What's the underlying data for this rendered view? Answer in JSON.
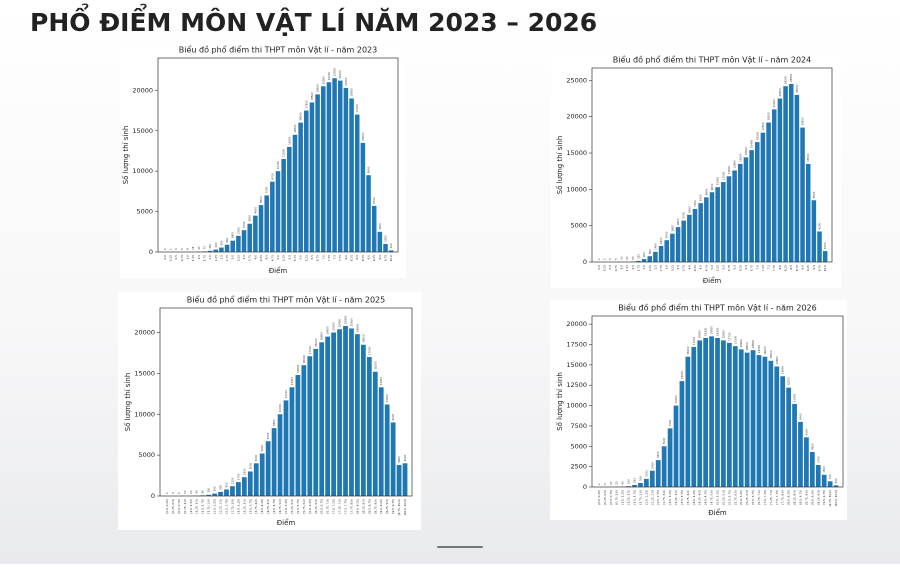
{
  "title": "PHỔ ĐIỂM MÔN VẬT LÍ NĂM 2023 – 2026",
  "chart_data": [
    {
      "type": "bar",
      "title": "Biểu đồ phổ điểm thi THPT môn Vật lí - năm 2023",
      "x_label": "Điểm",
      "y_label": "Số lượng thí sinh",
      "color": "#1f77b4",
      "categories": [
        "0.0",
        "0.25",
        "0.5",
        "0.75",
        "1.0",
        "1.25",
        "1.5",
        "1.75",
        "2.0",
        "2.25",
        "2.5",
        "2.75",
        "3.0",
        "3.25",
        "3.5",
        "3.75",
        "4.0",
        "4.25",
        "4.5",
        "4.75",
        "5.0",
        "5.25",
        "5.5",
        "5.75",
        "6.0",
        "6.25",
        "6.5",
        "6.75",
        "7.0",
        "7.25",
        "7.5",
        "7.75",
        "8.0",
        "8.25",
        "8.5",
        "8.75",
        "9.0",
        "9.25",
        "9.5",
        "9.75",
        "10.0"
      ],
      "values": [
        2,
        1,
        3,
        5,
        8,
        15,
        30,
        70,
        150,
        300,
        550,
        900,
        1400,
        2000,
        2700,
        3500,
        4500,
        5800,
        7000,
        8700,
        10000,
        11500,
        13000,
        14500,
        16000,
        17500,
        18500,
        19500,
        20500,
        21000,
        21500,
        21200,
        20300,
        19000,
        17000,
        13500,
        9500,
        5700,
        2500,
        1000,
        200
      ],
      "ylim": [
        0,
        24000
      ],
      "yticks": [
        0,
        5000,
        10000,
        15000,
        20000
      ]
    },
    {
      "type": "bar",
      "title": "Biểu đồ phổ điểm thi THPT môn Vật lí - năm 2024",
      "x_label": "Điểm",
      "y_label": "Số lượng thí sinh",
      "color": "#1f77b4",
      "categories": [
        "0.0",
        "0.25",
        "0.5",
        "0.75",
        "1.0",
        "1.25",
        "1.5",
        "1.75",
        "2.0",
        "2.25",
        "2.5",
        "2.75",
        "3.0",
        "3.25",
        "3.5",
        "3.75",
        "4.0",
        "4.25",
        "4.5",
        "4.75",
        "5.0",
        "5.25",
        "5.5",
        "5.75",
        "6.0",
        "6.25",
        "6.5",
        "6.75",
        "7.0",
        "7.25",
        "7.5",
        "7.75",
        "8.0",
        "8.25",
        "8.5",
        "8.75",
        "9.0",
        "9.25",
        "9.5",
        "9.75",
        "10.0"
      ],
      "values": [
        2,
        2,
        3,
        5,
        10,
        20,
        50,
        150,
        400,
        800,
        1400,
        2200,
        3000,
        3900,
        4800,
        5700,
        6500,
        7300,
        8100,
        8900,
        9600,
        10300,
        11000,
        11800,
        12600,
        13500,
        14400,
        15400,
        16500,
        17800,
        19200,
        21000,
        22500,
        24200,
        24500,
        23000,
        18500,
        13500,
        8500,
        4200,
        1500
      ],
      "ylim": [
        0,
        26700
      ],
      "yticks": [
        0,
        5000,
        10000,
        15000,
        20000,
        25000
      ]
    },
    {
      "type": "bar",
      "title": "Biểu đồ phổ điểm thi THPT môn Vật lí - năm 2025",
      "x_label": "Điểm",
      "y_label": "Số lượng thí sinh",
      "color": "#1f77b4",
      "categories": [
        "[0.0, 0.25)",
        "[0.25, 0.5)",
        "[0.5, 0.75)",
        "[0.75, 1.0)",
        "[1.0, 1.25)",
        "[1.25, 1.5)",
        "[1.5, 1.75)",
        "[1.75, 2.0)",
        "[2.0, 2.25)",
        "[2.25, 2.5)",
        "[2.5, 2.75)",
        "[2.75, 3.0)",
        "[3.0, 3.25)",
        "[3.25, 3.5)",
        "[3.5, 3.75)",
        "[3.75, 4.0)",
        "[4.0, 4.25)",
        "[4.25, 4.5)",
        "[4.5, 4.75)",
        "[4.75, 5.0)",
        "[5.0, 5.25)",
        "[5.25, 5.5)",
        "[5.5, 5.75)",
        "[5.75, 6.0)",
        "[6.0, 6.25)",
        "[6.25, 6.5)",
        "[6.5, 6.75)",
        "[6.75, 7.0)",
        "[7.0, 7.25)",
        "[7.25, 7.5)",
        "[7.5, 7.75)",
        "[7.75, 8.0)",
        "[8.0, 8.25)",
        "[8.25, 8.5)",
        "[8.5, 8.75)",
        "[8.75, 9.0)",
        "[9.0, 9.25)",
        "[9.25, 9.5)",
        "[9.5, 9.75)",
        "[9.75, 10.0)",
        "[10.0, 10.0]"
      ],
      "values": [
        2,
        3,
        5,
        10,
        20,
        40,
        80,
        150,
        300,
        500,
        800,
        1200,
        1700,
        2300,
        3000,
        4000,
        5200,
        6700,
        8300,
        10000,
        11700,
        13300,
        14800,
        16000,
        17100,
        18000,
        18800,
        19500,
        20000,
        20400,
        20800,
        20500,
        19800,
        18500,
        17000,
        15200,
        13300,
        11200,
        9000,
        3800,
        4000
      ],
      "ylim": [
        0,
        23000
      ],
      "yticks": [
        0,
        5000,
        10000,
        15000,
        20000
      ]
    },
    {
      "type": "bar",
      "title": "Biểu đồ phổ điểm thi THPT môn Vật lí - năm 2026",
      "x_label": "Điểm",
      "y_label": "Số lượng thí sinh",
      "color": "#1f77b4",
      "categories": [
        "[0.0, 0.25)",
        "[0.25, 0.5)",
        "[0.5, 0.75)",
        "[0.75, 1.0)",
        "[1.0, 1.25)",
        "[1.25, 1.5)",
        "[1.5, 1.75)",
        "[1.75, 2.0)",
        "[2.0, 2.25)",
        "[2.25, 2.5)",
        "[2.5, 2.75)",
        "[2.75, 3.0)",
        "[3.0, 3.25)",
        "[3.25, 3.5)",
        "[3.5, 3.75)",
        "[3.75, 4.0)",
        "[4.0, 4.25)",
        "[4.25, 4.5)",
        "[4.5, 4.75)",
        "[4.75, 5.0)",
        "[5.0, 5.25)",
        "[5.25, 5.5)",
        "[5.5, 5.75)",
        "[5.75, 6.0)",
        "[6.0, 6.25)",
        "[6.25, 6.5)",
        "[6.5, 6.75)",
        "[6.75, 7.0)",
        "[7.0, 7.25)",
        "[7.25, 7.5)",
        "[7.5, 7.75)",
        "[7.75, 8.0)",
        "[8.0, 8.25)",
        "[8.25, 8.5)",
        "[8.5, 8.75)",
        "[8.75, 9.0)",
        "[9.0, 9.25)",
        "[9.25, 9.5)",
        "[9.5, 9.75)",
        "[9.75, 10.0)",
        "[10.0, 10.0]"
      ],
      "values": [
        2,
        5,
        10,
        20,
        40,
        100,
        250,
        500,
        1000,
        2000,
        3300,
        5000,
        7200,
        10000,
        13000,
        16000,
        17200,
        18000,
        18300,
        18500,
        18300,
        18000,
        17700,
        17300,
        16900,
        16500,
        16800,
        16200,
        16000,
        15500,
        14800,
        13600,
        12200,
        10200,
        8000,
        6100,
        4300,
        2700,
        1500,
        700,
        200
      ],
      "ylim": [
        0,
        21000
      ],
      "yticks": [
        0,
        2500,
        5000,
        7500,
        10000,
        12500,
        15000,
        17500,
        20000
      ]
    }
  ]
}
